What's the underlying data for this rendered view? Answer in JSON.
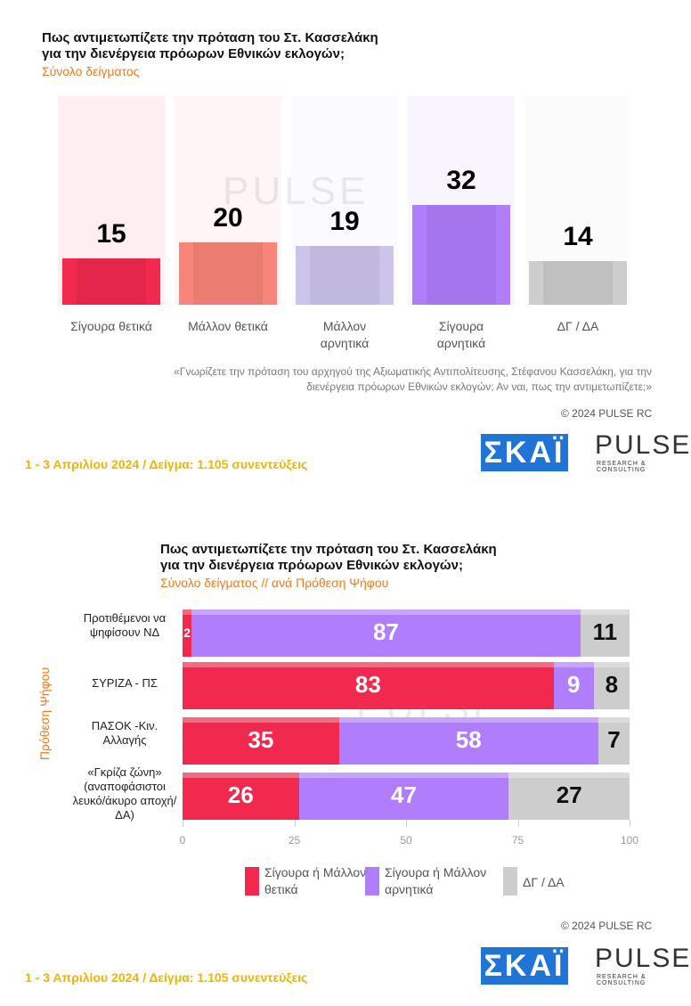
{
  "chart_data": [
    {
      "type": "bar",
      "title": "Πως αντιμετωπίζετε την πρόταση του Στ. Κασσελάκη για την διενέργεια πρόωρων Εθνικών εκλογών;",
      "subtitle": "Σύνολο δείγματος",
      "categories": [
        "Σίγουρα θετικά",
        "Μάλλον θετικά",
        "Μάλλον αρνητικά",
        "Σίγουρα αρνητικά",
        "ΔΓ / ΔΑ"
      ],
      "values": [
        15,
        20,
        19,
        32,
        14
      ],
      "colors": [
        "#f2294e",
        "#f98479",
        "#cdc4ec",
        "#b07dfd",
        "#cdcdcd"
      ],
      "note": "«Γνωρίζετε την πρόταση του αρχηγού της Αξιωματικής Αντιπολίτευσης, Στέφανου Κασσελάκη, για την διενέργεια πρόωρων Εθνικών εκλογών; Αν ναι, πως την αντιμετωπίζετε;»",
      "copyright": "© 2024 PULSE RC",
      "footer": "1 - 3  Απριλίου 2024  /  Δείγμα:  1.105 συνεντεύξεις",
      "logos": [
        "ΣΚΑΪ",
        "PULSE",
        "RESEARCH & CONSULTING"
      ]
    },
    {
      "type": "bar",
      "orientation": "horizontal",
      "stacked": true,
      "title": "Πως αντιμετωπίζετε την πρόταση του Στ. Κασσελάκη για την διενέργεια πρόωρων Εθνικών εκλογών;",
      "subtitle": "Σύνολο δείγματος // ανά Πρόθεση Ψήφου",
      "y_label": "Πρόθεση Ψήφου",
      "categories": [
        "Προτιθέμενοι να ψηφίσουν ΝΔ",
        "ΣΥΡΙΖΑ - ΠΣ",
        "ΠΑΣΟΚ -Κιν. Αλλαγής",
        "«Γκρίζα ζώνη» (αναποφάσιστοι λευκό/άκυρο αποχή/ΔΑ)"
      ],
      "series": [
        {
          "name": "Σίγουρα ή Μάλλον θετικά",
          "color": "#f2294e",
          "values": [
            2,
            83,
            35,
            26
          ]
        },
        {
          "name": "Σίγουρα ή Μάλλον αρνητικά",
          "color": "#b07dfd",
          "values": [
            87,
            9,
            58,
            47
          ]
        },
        {
          "name": "ΔΓ / ΔΑ",
          "color": "#cdcdcd",
          "values": [
            11,
            8,
            7,
            27
          ]
        }
      ],
      "xlim": [
        0,
        100
      ],
      "xticks": [
        0,
        25,
        50,
        75,
        100
      ],
      "copyright": "© 2024 PULSE RC",
      "footer": "1 - 3  Απριλίου 2024  /  Δείγμα:  1.105 συνεντεύξεις",
      "logos": [
        "ΣΚΑΪ",
        "PULSE",
        "RESEARCH & CONSULTING"
      ]
    }
  ]
}
